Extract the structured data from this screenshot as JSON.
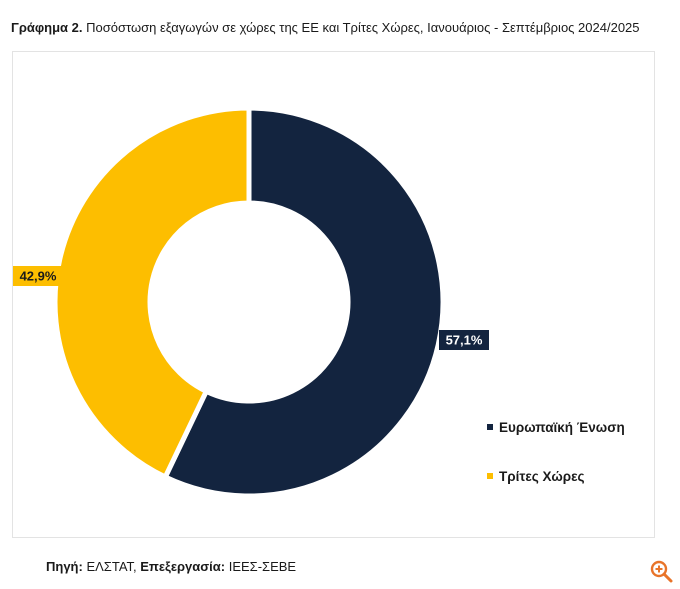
{
  "title": {
    "prefix": "Γράφημα 2.",
    "text": "Ποσόστωση εξαγωγών σε χώρες της ΕΕ και Τρίτες Χώρες, Ιανουάριος - Σεπτέμβριος 2024/2025"
  },
  "chart_data": {
    "type": "pie",
    "variant": "donut",
    "series": [
      {
        "name": "Ευρωπαϊκή Ένωση",
        "value": 57.1,
        "label": "57,1%",
        "color": "#13243f"
      },
      {
        "name": "Τρίτες Χώρες",
        "value": 42.9,
        "label": "42,9%",
        "color": "#fdbe00"
      }
    ],
    "legend_position": "right"
  },
  "source": {
    "label1": "Πηγή:",
    "value1": " ΕΛΣΤΑΤ, ",
    "label2": "Επεξεργασία:",
    "value2": " ΙΕΕΣ-ΣΕΒΕ"
  },
  "icons": {
    "zoom": "zoom-in-icon",
    "zoom_color": "#e8742a"
  }
}
